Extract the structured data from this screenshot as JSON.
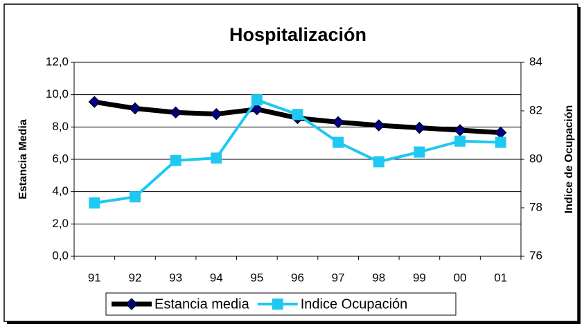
{
  "chart_data": {
    "type": "line",
    "title": "Hospitalización",
    "y_label": "Estancia Media",
    "y2_label": "Indice de Ocupación",
    "categories": [
      "91",
      "92",
      "93",
      "94",
      "95",
      "96",
      "97",
      "98",
      "99",
      "00",
      "01"
    ],
    "series": [
      {
        "name": "Estancia media",
        "color": "#000000",
        "marker_color": "#000080",
        "marker": "diamond",
        "values": [
          9.55,
          9.15,
          8.9,
          8.8,
          9.1,
          8.55,
          8.3,
          8.1,
          7.95,
          7.8,
          7.65
        ]
      },
      {
        "name": "Indice Ocupación",
        "color": "#1ec8f0",
        "marker": "square",
        "axis": "y2",
        "values": [
          78.2,
          78.45,
          79.95,
          80.05,
          82.45,
          81.85,
          80.7,
          79.9,
          80.3,
          80.75,
          80.7
        ]
      }
    ],
    "ylim": [
      0,
      12
    ],
    "yticks": [
      {
        "value": 0,
        "label": "0,0"
      },
      {
        "value": 2,
        "label": "2,0"
      },
      {
        "value": 4,
        "label": "4,0"
      },
      {
        "value": 6,
        "label": "6,0"
      },
      {
        "value": 8,
        "label": "8,0"
      },
      {
        "value": 10,
        "label": "10,0"
      },
      {
        "value": 12,
        "label": "12,0"
      }
    ],
    "y2lim": [
      76,
      84
    ],
    "y2ticks": [
      76,
      78,
      80,
      82,
      84
    ],
    "grid": true,
    "legend": "bottom"
  }
}
